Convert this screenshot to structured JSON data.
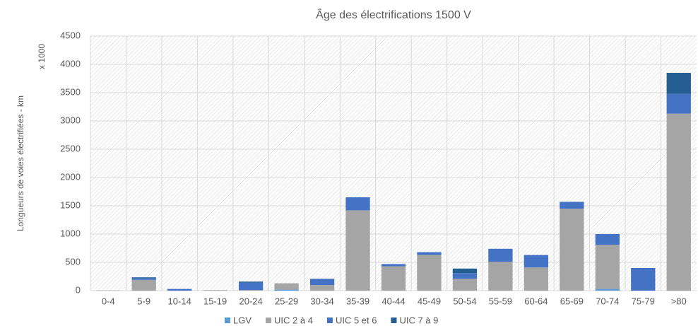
{
  "chart_data": {
    "type": "stacked_bar",
    "title": "Âge des électrifications 1500 V",
    "y_label": "Longueurs de voies électrifiées - km",
    "annotation": "x 1000",
    "categories": [
      "0-4",
      "5-9",
      "10-14",
      "15-19",
      "20-24",
      "25-29",
      "30-34",
      "35-39",
      "40-44",
      "45-49",
      "50-54",
      "55-59",
      "60-64",
      "65-69",
      "70-74",
      "75-79",
      ">80"
    ],
    "series": [
      {
        "name": "LGV",
        "color": "#5b9bd5",
        "values": [
          0,
          0,
          0,
          0,
          0,
          20,
          0,
          0,
          0,
          0,
          0,
          0,
          0,
          0,
          30,
          0,
          0
        ]
      },
      {
        "name": "UIC 2 à 4",
        "color": "#a5a5a5",
        "values": [
          5,
          190,
          0,
          10,
          10,
          110,
          100,
          1420,
          430,
          630,
          210,
          510,
          410,
          1450,
          780,
          0,
          3130
        ]
      },
      {
        "name": "UIC 5 et 6",
        "color": "#4472c4",
        "values": [
          0,
          30,
          30,
          0,
          130,
          0,
          110,
          230,
          40,
          50,
          100,
          230,
          220,
          120,
          190,
          400,
          350
        ]
      },
      {
        "name": "UIC 7 à 9",
        "color": "#255e91",
        "values": [
          0,
          15,
          0,
          0,
          20,
          0,
          0,
          0,
          0,
          0,
          80,
          0,
          0,
          0,
          0,
          0,
          370
        ]
      }
    ],
    "ylim": [
      0,
      4500
    ],
    "yticks": [
      0,
      500,
      1000,
      1500,
      2000,
      2500,
      3000,
      3500,
      4000,
      4500
    ],
    "grid": true,
    "legend": "bottom"
  }
}
